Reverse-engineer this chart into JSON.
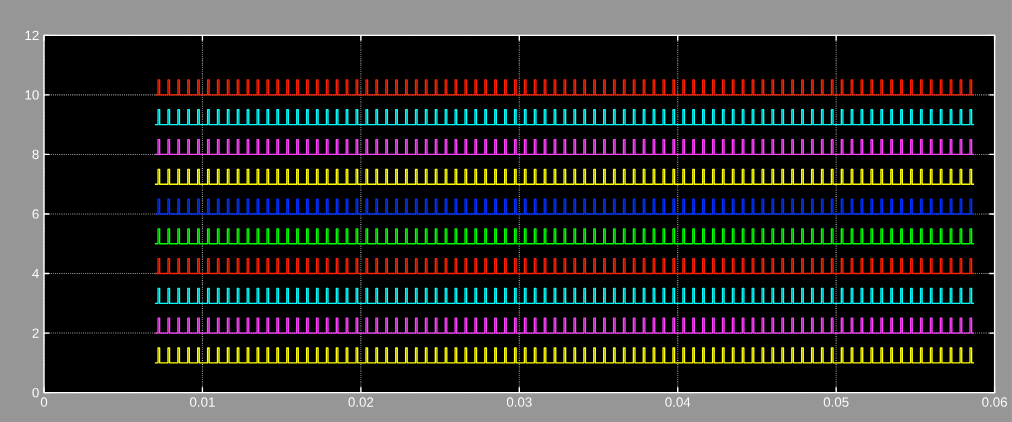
{
  "chart_data": {
    "type": "step",
    "xlim": [
      0,
      0.06
    ],
    "ylim": [
      0,
      12
    ],
    "xticks": [
      0,
      0.01,
      0.02,
      0.03,
      0.04,
      0.05,
      0.06
    ],
    "yticks": [
      0,
      2,
      4,
      6,
      8,
      10,
      12
    ],
    "grid": true,
    "x": [
      0.007,
      0.0072,
      0.0073,
      0.007825,
      0.007925,
      0.00845,
      0.00855,
      0.009075,
      0.009175,
      0.0097,
      0.0098,
      0.010325,
      0.010425,
      0.01095,
      0.01105,
      0.011575,
      0.011675,
      0.0122,
      0.0123,
      0.012825,
      0.012925,
      0.01345,
      0.01355,
      0.014075,
      0.014175,
      0.0147,
      0.0148,
      0.015325,
      0.015425,
      0.01595,
      0.01605,
      0.016575,
      0.016675,
      0.0172,
      0.0173,
      0.017825,
      0.017925,
      0.01845,
      0.01855,
      0.019075,
      0.019175,
      0.0197,
      0.0198,
      0.020325,
      0.020425,
      0.02095,
      0.02105,
      0.021575,
      0.021675,
      0.0222,
      0.0223,
      0.022825,
      0.022925,
      0.02345,
      0.02355,
      0.024075,
      0.024175,
      0.0247,
      0.0248,
      0.025325,
      0.025425,
      0.02595,
      0.02605,
      0.026575,
      0.026675,
      0.0272,
      0.0273,
      0.027825,
      0.027925,
      0.02845,
      0.02855,
      0.029075,
      0.029175,
      0.0297,
      0.0298,
      0.030325,
      0.030425,
      0.03095,
      0.03105,
      0.031575,
      0.031675,
      0.0322,
      0.0323,
      0.032825,
      0.032925,
      0.03345,
      0.03355,
      0.034075,
      0.034175,
      0.0347,
      0.0348,
      0.035325,
      0.035425,
      0.03595,
      0.03605,
      0.036575,
      0.036675,
      0.0372,
      0.0373,
      0.037825,
      0.037925,
      0.03845,
      0.03855,
      0.039075,
      0.039175,
      0.0397,
      0.0398,
      0.040325,
      0.040425,
      0.04095,
      0.04105,
      0.041575,
      0.041675,
      0.0422,
      0.0423,
      0.042825,
      0.042925,
      0.04345,
      0.04355,
      0.044075,
      0.044175,
      0.0447,
      0.0448,
      0.045325,
      0.045425,
      0.04595,
      0.04605,
      0.046575,
      0.046675,
      0.0472,
      0.0473,
      0.047825,
      0.047925,
      0.04845,
      0.04855,
      0.049075,
      0.049175,
      0.0497,
      0.0498,
      0.050325,
      0.050425,
      0.05095,
      0.05105,
      0.051575,
      0.051675,
      0.0522,
      0.0523,
      0.052825,
      0.052925,
      0.05345,
      0.05355,
      0.054075,
      0.054175,
      0.0547,
      0.0548,
      0.055325,
      0.055425,
      0.05595,
      0.05605,
      0.056575,
      0.056675,
      0.0572,
      0.0573,
      0.057825,
      0.057925,
      0.05845,
      0.05855,
      0.0587
    ],
    "series": [
      {
        "color": "#ffff00",
        "values": [
          1,
          1.5,
          1,
          1.5,
          1,
          1.5,
          1,
          1.5,
          1,
          1.5,
          1,
          1.5,
          1,
          1.5,
          1,
          1.5,
          1,
          1.5,
          1,
          1.5,
          1,
          1.5,
          1,
          1.5,
          1,
          1.5,
          1,
          1.5,
          1,
          1.5,
          1,
          1.5,
          1,
          1.5,
          1,
          1.5,
          1,
          1.5,
          1,
          1.5,
          1,
          1.5,
          1,
          1.5,
          1,
          1.5,
          1,
          1.5,
          1,
          1.5,
          1,
          1.5,
          1,
          1.5,
          1,
          1.5,
          1,
          1.5,
          1,
          1.5,
          1,
          1.5,
          1,
          1.5,
          1,
          1.5,
          1,
          1.5,
          1,
          1.5,
          1,
          1.5,
          1,
          1.5,
          1,
          1.5,
          1,
          1.5,
          1,
          1.5,
          1,
          1.5,
          1,
          1.5,
          1,
          1.5,
          1,
          1.5,
          1,
          1.5,
          1,
          1.5,
          1,
          1.5,
          1,
          1.5,
          1,
          1.5,
          1,
          1.5,
          1,
          1.5,
          1,
          1.5,
          1,
          1.5,
          1,
          1.5,
          1,
          1.5,
          1,
          1.5,
          1,
          1.5,
          1,
          1.5,
          1,
          1.5,
          1,
          1.5,
          1,
          1.5,
          1,
          1.5,
          1,
          1.5,
          1,
          1.5,
          1,
          1.5,
          1,
          1.5,
          1,
          1.5,
          1,
          1.5,
          1,
          1.5,
          1,
          1.5,
          1,
          1.5,
          1,
          1.5,
          1,
          1.5,
          1,
          1.5,
          1,
          1.5,
          1,
          1.5,
          1,
          1.5,
          1,
          1.5,
          1,
          1.5,
          1,
          1.5,
          1,
          1.5,
          1,
          1.5,
          1,
          1.5,
          1,
          1
        ]
      },
      {
        "color": "#ff40ff",
        "values": [
          2,
          2.5,
          2,
          2.5,
          2,
          2.5,
          2,
          2.5,
          2,
          2.5,
          2,
          2.5,
          2,
          2.5,
          2,
          2.5,
          2,
          2.5,
          2,
          2.5,
          2,
          2.5,
          2,
          2.5,
          2,
          2.5,
          2,
          2.5,
          2,
          2.5,
          2,
          2.5,
          2,
          2.5,
          2,
          2.5,
          2,
          2.5,
          2,
          2.5,
          2,
          2.5,
          2,
          2.5,
          2,
          2.5,
          2,
          2.5,
          2,
          2.5,
          2,
          2.5,
          2,
          2.5,
          2,
          2.5,
          2,
          2.5,
          2,
          2.5,
          2,
          2.5,
          2,
          2.5,
          2,
          2.5,
          2,
          2.5,
          2,
          2.5,
          2,
          2.5,
          2,
          2.5,
          2,
          2.5,
          2,
          2.5,
          2,
          2.5,
          2,
          2.5,
          2,
          2.5,
          2,
          2.5,
          2,
          2.5,
          2,
          2.5,
          2,
          2.5,
          2,
          2.5,
          2,
          2.5,
          2,
          2.5,
          2,
          2.5,
          2,
          2.5,
          2,
          2.5,
          2,
          2.5,
          2,
          2.5,
          2,
          2.5,
          2,
          2.5,
          2,
          2.5,
          2,
          2.5,
          2,
          2.5,
          2,
          2.5,
          2,
          2.5,
          2,
          2.5,
          2,
          2.5,
          2,
          2.5,
          2,
          2.5,
          2,
          2.5,
          2,
          2.5,
          2,
          2.5,
          2,
          2.5,
          2,
          2.5,
          2,
          2.5,
          2,
          2.5,
          2,
          2.5,
          2,
          2.5,
          2,
          2.5,
          2,
          2.5,
          2,
          2.5,
          2,
          2.5,
          2,
          2.5,
          2,
          2.5,
          2,
          2.5,
          2,
          2.5,
          2,
          2.5,
          2,
          2
        ]
      },
      {
        "color": "#00ffff",
        "values": [
          3,
          3.5,
          3,
          3.5,
          3,
          3.5,
          3,
          3.5,
          3,
          3.5,
          3,
          3.5,
          3,
          3.5,
          3,
          3.5,
          3,
          3.5,
          3,
          3.5,
          3,
          3.5,
          3,
          3.5,
          3,
          3.5,
          3,
          3.5,
          3,
          3.5,
          3,
          3.5,
          3,
          3.5,
          3,
          3.5,
          3,
          3.5,
          3,
          3.5,
          3,
          3.5,
          3,
          3.5,
          3,
          3.5,
          3,
          3.5,
          3,
          3.5,
          3,
          3.5,
          3,
          3.5,
          3,
          3.5,
          3,
          3.5,
          3,
          3.5,
          3,
          3.5,
          3,
          3.5,
          3,
          3.5,
          3,
          3.5,
          3,
          3.5,
          3,
          3.5,
          3,
          3.5,
          3,
          3.5,
          3,
          3.5,
          3,
          3.5,
          3,
          3.5,
          3,
          3.5,
          3,
          3.5,
          3,
          3.5,
          3,
          3.5,
          3,
          3.5,
          3,
          3.5,
          3,
          3.5,
          3,
          3.5,
          3,
          3.5,
          3,
          3.5,
          3,
          3.5,
          3,
          3.5,
          3,
          3.5,
          3,
          3.5,
          3,
          3.5,
          3,
          3.5,
          3,
          3.5,
          3,
          3.5,
          3,
          3.5,
          3,
          3.5,
          3,
          3.5,
          3,
          3.5,
          3,
          3.5,
          3,
          3.5,
          3,
          3.5,
          3,
          3.5,
          3,
          3.5,
          3,
          3.5,
          3,
          3.5,
          3,
          3.5,
          3,
          3.5,
          3,
          3.5,
          3,
          3.5,
          3,
          3.5,
          3,
          3.5,
          3,
          3.5,
          3,
          3.5,
          3,
          3.5,
          3,
          3.5,
          3,
          3.5,
          3,
          3.5,
          3,
          3.5,
          3,
          3
        ]
      },
      {
        "color": "#ff2000",
        "values": [
          4,
          4.5,
          4,
          4.5,
          4,
          4.5,
          4,
          4.5,
          4,
          4.5,
          4,
          4.5,
          4,
          4.5,
          4,
          4.5,
          4,
          4.5,
          4,
          4.5,
          4,
          4.5,
          4,
          4.5,
          4,
          4.5,
          4,
          4.5,
          4,
          4.5,
          4,
          4.5,
          4,
          4.5,
          4,
          4.5,
          4,
          4.5,
          4,
          4.5,
          4,
          4.5,
          4,
          4.5,
          4,
          4.5,
          4,
          4.5,
          4,
          4.5,
          4,
          4.5,
          4,
          4.5,
          4,
          4.5,
          4,
          4.5,
          4,
          4.5,
          4,
          4.5,
          4,
          4.5,
          4,
          4.5,
          4,
          4.5,
          4,
          4.5,
          4,
          4.5,
          4,
          4.5,
          4,
          4.5,
          4,
          4.5,
          4,
          4.5,
          4,
          4.5,
          4,
          4.5,
          4,
          4.5,
          4,
          4.5,
          4,
          4.5,
          4,
          4.5,
          4,
          4.5,
          4,
          4.5,
          4,
          4.5,
          4,
          4.5,
          4,
          4.5,
          4,
          4.5,
          4,
          4.5,
          4,
          4.5,
          4,
          4.5,
          4,
          4.5,
          4,
          4.5,
          4,
          4.5,
          4,
          4.5,
          4,
          4.5,
          4,
          4.5,
          4,
          4.5,
          4,
          4.5,
          4,
          4.5,
          4,
          4.5,
          4,
          4.5,
          4,
          4.5,
          4,
          4.5,
          4,
          4.5,
          4,
          4.5,
          4,
          4.5,
          4,
          4.5,
          4,
          4.5,
          4,
          4.5,
          4,
          4.5,
          4,
          4.5,
          4,
          4.5,
          4,
          4.5,
          4,
          4.5,
          4,
          4.5,
          4,
          4.5,
          4,
          4.5,
          4,
          4.5,
          4,
          4
        ]
      },
      {
        "color": "#00ff00",
        "values": [
          5,
          5.5,
          5,
          5.5,
          5,
          5.5,
          5,
          5.5,
          5,
          5.5,
          5,
          5.5,
          5,
          5.5,
          5,
          5.5,
          5,
          5.5,
          5,
          5.5,
          5,
          5.5,
          5,
          5.5,
          5,
          5.5,
          5,
          5.5,
          5,
          5.5,
          5,
          5.5,
          5,
          5.5,
          5,
          5.5,
          5,
          5.5,
          5,
          5.5,
          5,
          5.5,
          5,
          5.5,
          5,
          5.5,
          5,
          5.5,
          5,
          5.5,
          5,
          5.5,
          5,
          5.5,
          5,
          5.5,
          5,
          5.5,
          5,
          5.5,
          5,
          5.5,
          5,
          5.5,
          5,
          5.5,
          5,
          5.5,
          5,
          5.5,
          5,
          5.5,
          5,
          5.5,
          5,
          5.5,
          5,
          5.5,
          5,
          5.5,
          5,
          5.5,
          5,
          5.5,
          5,
          5.5,
          5,
          5.5,
          5,
          5.5,
          5,
          5.5,
          5,
          5.5,
          5,
          5.5,
          5,
          5.5,
          5,
          5.5,
          5,
          5.5,
          5,
          5.5,
          5,
          5.5,
          5,
          5.5,
          5,
          5.5,
          5,
          5.5,
          5,
          5.5,
          5,
          5.5,
          5,
          5.5,
          5,
          5.5,
          5,
          5.5,
          5,
          5.5,
          5,
          5.5,
          5,
          5.5,
          5,
          5.5,
          5,
          5.5,
          5,
          5.5,
          5,
          5.5,
          5,
          5.5,
          5,
          5.5,
          5,
          5.5,
          5,
          5.5,
          5,
          5.5,
          5,
          5.5,
          5,
          5.5,
          5,
          5.5,
          5,
          5.5,
          5,
          5.5,
          5,
          5.5,
          5,
          5.5,
          5,
          5.5,
          5,
          5.5,
          5,
          5.5,
          5,
          5
        ]
      },
      {
        "color": "#0030ff",
        "values": [
          6,
          6.5,
          6,
          6.5,
          6,
          6.5,
          6,
          6.5,
          6,
          6.5,
          6,
          6.5,
          6,
          6.5,
          6,
          6.5,
          6,
          6.5,
          6,
          6.5,
          6,
          6.5,
          6,
          6.5,
          6,
          6.5,
          6,
          6.5,
          6,
          6.5,
          6,
          6.5,
          6,
          6.5,
          6,
          6.5,
          6,
          6.5,
          6,
          6.5,
          6,
          6.5,
          6,
          6.5,
          6,
          6.5,
          6,
          6.5,
          6,
          6.5,
          6,
          6.5,
          6,
          6.5,
          6,
          6.5,
          6,
          6.5,
          6,
          6.5,
          6,
          6.5,
          6,
          6.5,
          6,
          6.5,
          6,
          6.5,
          6,
          6.5,
          6,
          6.5,
          6,
          6.5,
          6,
          6.5,
          6,
          6.5,
          6,
          6.5,
          6,
          6.5,
          6,
          6.5,
          6,
          6.5,
          6,
          6.5,
          6,
          6.5,
          6,
          6.5,
          6,
          6.5,
          6,
          6.5,
          6,
          6.5,
          6,
          6.5,
          6,
          6.5,
          6,
          6.5,
          6,
          6.5,
          6,
          6.5,
          6,
          6.5,
          6,
          6.5,
          6,
          6.5,
          6,
          6.5,
          6,
          6.5,
          6,
          6.5,
          6,
          6.5,
          6,
          6.5,
          6,
          6.5,
          6,
          6.5,
          6,
          6.5,
          6,
          6.5,
          6,
          6.5,
          6,
          6.5,
          6,
          6.5,
          6,
          6.5,
          6,
          6.5,
          6,
          6.5,
          6,
          6.5,
          6,
          6.5,
          6,
          6.5,
          6,
          6.5,
          6,
          6.5,
          6,
          6.5,
          6,
          6.5,
          6,
          6.5,
          6,
          6.5,
          6,
          6.5,
          6,
          6.5,
          6,
          6
        ]
      },
      {
        "color": "#ffff00",
        "values": [
          7,
          7.5,
          7,
          7.5,
          7,
          7.5,
          7,
          7.5,
          7,
          7.5,
          7,
          7.5,
          7,
          7.5,
          7,
          7.5,
          7,
          7.5,
          7,
          7.5,
          7,
          7.5,
          7,
          7.5,
          7,
          7.5,
          7,
          7.5,
          7,
          7.5,
          7,
          7.5,
          7,
          7.5,
          7,
          7.5,
          7,
          7.5,
          7,
          7.5,
          7,
          7.5,
          7,
          7.5,
          7,
          7.5,
          7,
          7.5,
          7,
          7.5,
          7,
          7.5,
          7,
          7.5,
          7,
          7.5,
          7,
          7.5,
          7,
          7.5,
          7,
          7.5,
          7,
          7.5,
          7,
          7.5,
          7,
          7.5,
          7,
          7.5,
          7,
          7.5,
          7,
          7.5,
          7,
          7.5,
          7,
          7.5,
          7,
          7.5,
          7,
          7.5,
          7,
          7.5,
          7,
          7.5,
          7,
          7.5,
          7,
          7.5,
          7,
          7.5,
          7,
          7.5,
          7,
          7.5,
          7,
          7.5,
          7,
          7.5,
          7,
          7.5,
          7,
          7.5,
          7,
          7.5,
          7,
          7.5,
          7,
          7.5,
          7,
          7.5,
          7,
          7.5,
          7,
          7.5,
          7,
          7.5,
          7,
          7.5,
          7,
          7.5,
          7,
          7.5,
          7,
          7.5,
          7,
          7.5,
          7,
          7.5,
          7,
          7.5,
          7,
          7.5,
          7,
          7.5,
          7,
          7.5,
          7,
          7.5,
          7,
          7.5,
          7,
          7.5,
          7,
          7.5,
          7,
          7.5,
          7,
          7.5,
          7,
          7.5,
          7,
          7.5,
          7,
          7.5,
          7,
          7.5,
          7,
          7.5,
          7,
          7.5,
          7,
          7.5,
          7,
          7.5,
          7,
          7
        ]
      },
      {
        "color": "#ff40ff",
        "values": [
          8,
          8.5,
          8,
          8.5,
          8,
          8.5,
          8,
          8.5,
          8,
          8.5,
          8,
          8.5,
          8,
          8.5,
          8,
          8.5,
          8,
          8.5,
          8,
          8.5,
          8,
          8.5,
          8,
          8.5,
          8,
          8.5,
          8,
          8.5,
          8,
          8.5,
          8,
          8.5,
          8,
          8.5,
          8,
          8.5,
          8,
          8.5,
          8,
          8.5,
          8,
          8.5,
          8,
          8.5,
          8,
          8.5,
          8,
          8.5,
          8,
          8.5,
          8,
          8.5,
          8,
          8.5,
          8,
          8.5,
          8,
          8.5,
          8,
          8.5,
          8,
          8.5,
          8,
          8.5,
          8,
          8.5,
          8,
          8.5,
          8,
          8.5,
          8,
          8.5,
          8,
          8.5,
          8,
          8.5,
          8,
          8.5,
          8,
          8.5,
          8,
          8.5,
          8,
          8.5,
          8,
          8.5,
          8,
          8.5,
          8,
          8.5,
          8,
          8.5,
          8,
          8.5,
          8,
          8.5,
          8,
          8.5,
          8,
          8.5,
          8,
          8.5,
          8,
          8.5,
          8,
          8.5,
          8,
          8.5,
          8,
          8.5,
          8,
          8.5,
          8,
          8.5,
          8,
          8.5,
          8,
          8.5,
          8,
          8.5,
          8,
          8.5,
          8,
          8.5,
          8,
          8.5,
          8,
          8.5,
          8,
          8.5,
          8,
          8.5,
          8,
          8.5,
          8,
          8.5,
          8,
          8.5,
          8,
          8.5,
          8,
          8.5,
          8,
          8.5,
          8,
          8.5,
          8,
          8.5,
          8,
          8.5,
          8,
          8.5,
          8,
          8.5,
          8,
          8.5,
          8,
          8.5,
          8,
          8.5,
          8,
          8.5,
          8,
          8.5,
          8,
          8.5,
          8,
          8
        ]
      },
      {
        "color": "#00ffff",
        "values": [
          9,
          9.5,
          9,
          9.5,
          9,
          9.5,
          9,
          9.5,
          9,
          9.5,
          9,
          9.5,
          9,
          9.5,
          9,
          9.5,
          9,
          9.5,
          9,
          9.5,
          9,
          9.5,
          9,
          9.5,
          9,
          9.5,
          9,
          9.5,
          9,
          9.5,
          9,
          9.5,
          9,
          9.5,
          9,
          9.5,
          9,
          9.5,
          9,
          9.5,
          9,
          9.5,
          9,
          9.5,
          9,
          9.5,
          9,
          9.5,
          9,
          9.5,
          9,
          9.5,
          9,
          9.5,
          9,
          9.5,
          9,
          9.5,
          9,
          9.5,
          9,
          9.5,
          9,
          9.5,
          9,
          9.5,
          9,
          9.5,
          9,
          9.5,
          9,
          9.5,
          9,
          9.5,
          9,
          9.5,
          9,
          9.5,
          9,
          9.5,
          9,
          9.5,
          9,
          9.5,
          9,
          9.5,
          9,
          9.5,
          9,
          9.5,
          9,
          9.5,
          9,
          9.5,
          9,
          9.5,
          9,
          9.5,
          9,
          9.5,
          9,
          9.5,
          9,
          9.5,
          9,
          9.5,
          9,
          9.5,
          9,
          9.5,
          9,
          9.5,
          9,
          9.5,
          9,
          9.5,
          9,
          9.5,
          9,
          9.5,
          9,
          9.5,
          9,
          9.5,
          9,
          9.5,
          9,
          9.5,
          9,
          9.5,
          9,
          9.5,
          9,
          9.5,
          9,
          9.5,
          9,
          9.5,
          9,
          9.5,
          9,
          9.5,
          9,
          9.5,
          9,
          9.5,
          9,
          9.5,
          9,
          9.5,
          9,
          9.5,
          9,
          9.5,
          9,
          9.5,
          9,
          9.5,
          9,
          9.5,
          9,
          9.5,
          9,
          9.5,
          9,
          9.5,
          9,
          9
        ]
      },
      {
        "color": "#ff2000",
        "values": [
          10,
          10.5,
          10,
          10.5,
          10,
          10.5,
          10,
          10.5,
          10,
          10.5,
          10,
          10.5,
          10,
          10.5,
          10,
          10.5,
          10,
          10.5,
          10,
          10.5,
          10,
          10.5,
          10,
          10.5,
          10,
          10.5,
          10,
          10.5,
          10,
          10.5,
          10,
          10.5,
          10,
          10.5,
          10,
          10.5,
          10,
          10.5,
          10,
          10.5,
          10,
          10.5,
          10,
          10.5,
          10,
          10.5,
          10,
          10.5,
          10,
          10.5,
          10,
          10.5,
          10,
          10.5,
          10,
          10.5,
          10,
          10.5,
          10,
          10.5,
          10,
          10.5,
          10,
          10.5,
          10,
          10.5,
          10,
          10.5,
          10,
          10.5,
          10,
          10.5,
          10,
          10.5,
          10,
          10.5,
          10,
          10.5,
          10,
          10.5,
          10,
          10.5,
          10,
          10.5,
          10,
          10.5,
          10,
          10.5,
          10,
          10.5,
          10,
          10.5,
          10,
          10.5,
          10,
          10.5,
          10,
          10.5,
          10,
          10.5,
          10,
          10.5,
          10,
          10.5,
          10,
          10.5,
          10,
          10.5,
          10,
          10.5,
          10,
          10.5,
          10,
          10.5,
          10,
          10.5,
          10,
          10.5,
          10,
          10.5,
          10,
          10.5,
          10,
          10.5,
          10,
          10.5,
          10,
          10.5,
          10,
          10.5,
          10,
          10.5,
          10,
          10.5,
          10,
          10.5,
          10,
          10.5,
          10,
          10.5,
          10,
          10.5,
          10,
          10.5,
          10,
          10.5,
          10,
          10.5,
          10,
          10.5,
          10,
          10.5,
          10,
          10.5,
          10,
          10.5,
          10,
          10.5,
          10,
          10.5,
          10,
          10.5,
          10,
          10.5,
          10,
          10.5,
          10,
          10
        ]
      }
    ]
  }
}
